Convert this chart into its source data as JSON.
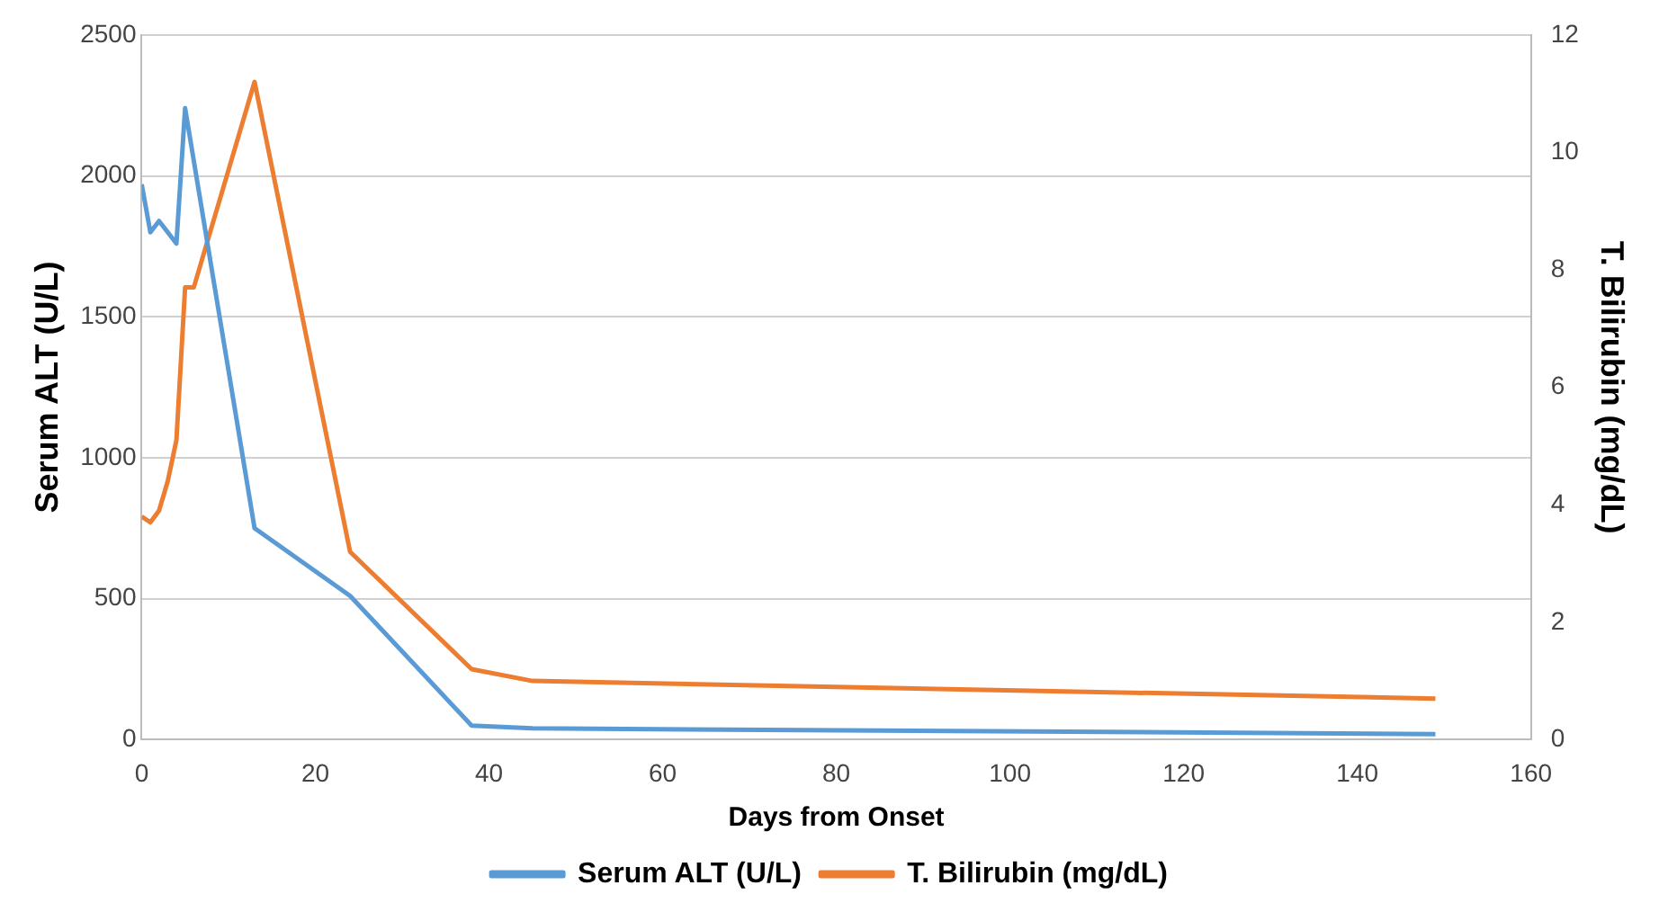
{
  "chart_data": {
    "type": "line",
    "xlabel": "Days from Onset",
    "ylabel": "Serum ALT (U/L)",
    "y2label": "T. Bilirubin (mg/dL)",
    "xlim": [
      0,
      160
    ],
    "xticks": [
      0,
      20,
      40,
      60,
      80,
      100,
      120,
      140,
      160
    ],
    "ylim": [
      0,
      2500
    ],
    "yticks": [
      0,
      500,
      1000,
      1500,
      2000,
      2500
    ],
    "y2lim": [
      0,
      12
    ],
    "y2ticks": [
      0,
      2,
      4,
      6,
      8,
      10,
      12
    ],
    "grid": "y",
    "legend": "bottom",
    "marker": "none",
    "line_style": "solid",
    "series": [
      {
        "name": "Serum ALT (U/L)",
        "color": "#5b9bd5",
        "x": [
          0,
          1,
          2,
          4,
          5,
          13,
          24,
          38,
          45,
          149
        ],
        "values": [
          1970,
          1800,
          1840,
          1760,
          2240,
          750,
          510,
          50,
          40,
          20
        ]
      },
      {
        "name": "T. Bilirubin (mg/dL)",
        "color": "#ed7d31",
        "axis": "y2",
        "x": [
          0,
          1,
          2,
          3,
          4,
          5,
          6,
          13,
          24,
          38,
          45,
          149
        ],
        "values": [
          3.8,
          3.7,
          3.9,
          4.4,
          5.1,
          7.7,
          7.7,
          11.2,
          3.2,
          1.2,
          1.0,
          0.7
        ]
      }
    ]
  }
}
